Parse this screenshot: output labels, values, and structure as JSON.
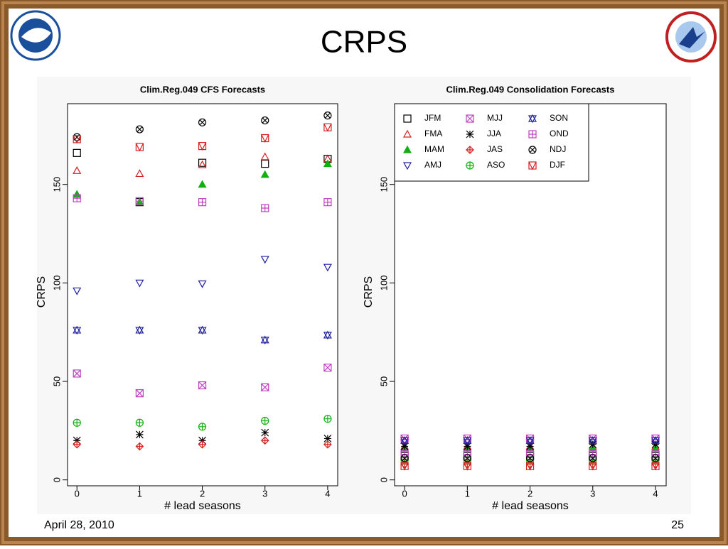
{
  "slide": {
    "title": "CRPS",
    "date": "April 28, 2010",
    "page": "25"
  },
  "chart_data": [
    {
      "type": "scatter",
      "title": "Clim.Reg.049  CFS Forecasts",
      "x_label": "# lead seasons",
      "y_label": "CRPS",
      "x": [
        0,
        1,
        2,
        3,
        4
      ],
      "xlim": [
        -0.15,
        4.16
      ],
      "ylim": [
        -3,
        191
      ],
      "xticks": [
        0,
        1,
        2,
        3,
        4
      ],
      "yticks": [
        0,
        50,
        100,
        150
      ],
      "series": [
        {
          "name": "JFM",
          "color": "#000000",
          "marker": "square",
          "values": [
            166,
            141,
            161,
            160.5,
            163
          ]
        },
        {
          "name": "FMA",
          "color": "#d42020",
          "marker": "triangle-up",
          "values": [
            157,
            155.5,
            160,
            164,
            163
          ]
        },
        {
          "name": "MAM",
          "color": "#10b010",
          "marker": "triangle-up-filled",
          "values": [
            145,
            141,
            150,
            155,
            160.5
          ]
        },
        {
          "name": "AMJ",
          "color": "#2020a0",
          "marker": "triangle-down",
          "values": [
            96,
            100,
            99.6,
            112,
            108
          ]
        },
        {
          "name": "MJJ",
          "color": "#c040c0",
          "marker": "square-x",
          "values": [
            54,
            44,
            48,
            47,
            57
          ]
        },
        {
          "name": "JJA",
          "color": "#000000",
          "marker": "asterisk",
          "values": [
            20,
            23,
            20,
            24,
            21
          ]
        },
        {
          "name": "JAS",
          "color": "#d42020",
          "marker": "diamond-plus",
          "values": [
            18,
            17,
            18,
            20,
            18
          ]
        },
        {
          "name": "ASO",
          "color": "#10b010",
          "marker": "circle-plus",
          "values": [
            29,
            29,
            27,
            30,
            31
          ]
        },
        {
          "name": "SON",
          "color": "#2020a0",
          "marker": "star",
          "values": [
            76,
            76,
            76,
            71,
            73.5
          ]
        },
        {
          "name": "OND",
          "color": "#c040c0",
          "marker": "square-plus",
          "values": [
            143,
            141.5,
            141,
            138,
            141
          ]
        },
        {
          "name": "NDJ",
          "color": "#000000",
          "marker": "circle-x",
          "values": [
            174,
            178,
            181.5,
            182.5,
            185
          ]
        },
        {
          "name": "DJF",
          "color": "#d42020",
          "marker": "square-v",
          "values": [
            173,
            169,
            169.5,
            173.5,
            179
          ]
        }
      ]
    },
    {
      "type": "scatter",
      "title": "Clim.Reg.049  Consolidation Forecasts",
      "x_label": "# lead seasons",
      "y_label": "CRPS",
      "x": [
        0,
        1,
        2,
        3,
        4
      ],
      "xlim": [
        -0.16,
        4.17
      ],
      "ylim": [
        -3,
        191
      ],
      "xticks": [
        0,
        1,
        2,
        3,
        4
      ],
      "yticks": [
        0,
        50,
        100,
        150
      ],
      "legend": "top-left",
      "series": [
        {
          "name": "JFM",
          "color": "#000000",
          "marker": "square",
          "values": [
            12,
            12,
            12,
            12,
            12
          ]
        },
        {
          "name": "FMA",
          "color": "#d42020",
          "marker": "triangle-up",
          "values": [
            17,
            17,
            17,
            17,
            17
          ]
        },
        {
          "name": "MAM",
          "color": "#10b010",
          "marker": "triangle-up-filled",
          "values": [
            16,
            16,
            16,
            16,
            16
          ]
        },
        {
          "name": "AMJ",
          "color": "#2020a0",
          "marker": "triangle-down",
          "values": [
            19,
            19,
            19,
            19,
            19
          ]
        },
        {
          "name": "MJJ",
          "color": "#c040c0",
          "marker": "square-x",
          "values": [
            21,
            21,
            21,
            21,
            21
          ]
        },
        {
          "name": "JJA",
          "color": "#000000",
          "marker": "asterisk",
          "values": [
            17,
            17,
            17,
            18,
            18
          ]
        },
        {
          "name": "JAS",
          "color": "#d42020",
          "marker": "diamond-plus",
          "values": [
            8,
            8,
            8,
            8,
            8
          ]
        },
        {
          "name": "ASO",
          "color": "#10b010",
          "marker": "circle-plus",
          "values": [
            10,
            10,
            10,
            10,
            10
          ]
        },
        {
          "name": "SON",
          "color": "#2020a0",
          "marker": "star",
          "values": [
            20,
            20,
            20,
            20,
            20
          ]
        },
        {
          "name": "OND",
          "color": "#c040c0",
          "marker": "square-plus",
          "values": [
            13,
            13,
            13,
            13,
            13
          ]
        },
        {
          "name": "NDJ",
          "color": "#000000",
          "marker": "circle-x",
          "values": [
            11,
            11,
            11,
            11,
            11
          ]
        },
        {
          "name": "DJF",
          "color": "#d42020",
          "marker": "square-v",
          "values": [
            7,
            7,
            7,
            7,
            7
          ]
        }
      ]
    }
  ]
}
